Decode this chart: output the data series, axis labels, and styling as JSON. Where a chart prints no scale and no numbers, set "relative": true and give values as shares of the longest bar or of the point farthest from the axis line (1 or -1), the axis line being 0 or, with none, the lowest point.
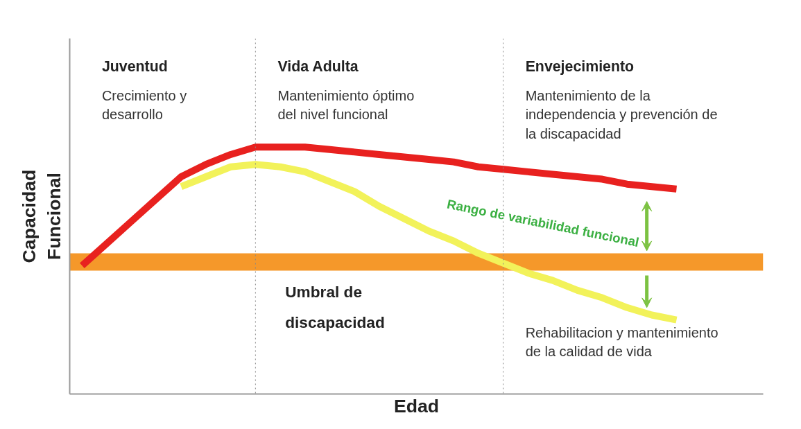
{
  "chart_data": {
    "type": "line",
    "relative": true,
    "xlabel": "Edad",
    "ylabel": "Capacidad\nFuncional",
    "categories": [
      null,
      null,
      null,
      null,
      null,
      null,
      null,
      null,
      null,
      null,
      null,
      null,
      null,
      null,
      null,
      null,
      null,
      null,
      null,
      null,
      null,
      null,
      null,
      null,
      null,
      null,
      null,
      null
    ],
    "series": [
      {
        "color": "#e8211f",
        "values": [
          0.52,
          0.61,
          0.7,
          0.79,
          0.88,
          0.93,
          0.97,
          1.0,
          1.0,
          1.0,
          0.99,
          0.98,
          0.97,
          0.96,
          0.95,
          0.94,
          0.92,
          0.91,
          0.9,
          0.89,
          0.88,
          0.87,
          0.85,
          0.84,
          0.83,
          null,
          null,
          null
        ]
      },
      {
        "color": "#f2f25a",
        "values": [
          null,
          null,
          null,
          null,
          0.84,
          0.88,
          0.92,
          0.93,
          0.92,
          0.9,
          0.86,
          0.82,
          0.76,
          0.71,
          0.66,
          0.62,
          0.57,
          0.53,
          0.49,
          0.46,
          0.42,
          0.39,
          0.35,
          0.32,
          0.3,
          null,
          null,
          null
        ]
      }
    ],
    "bands": [
      {
        "axis": "y",
        "from": 0.5,
        "to": 0.57,
        "label": "Umbral de\ndiscapacidad",
        "color": "#f5982a"
      }
    ],
    "annotations": [
      "Juventud",
      "Crecimiento y\ndesarrollo",
      "Vida Adulta",
      "Mantenimiento óptimo\ndel nivel funcional",
      "Envejecimiento",
      "Mantenimiento de la\nindependencia y prevención de\nla discapacidad",
      "Rehabilitacion y mantenimiento\nde la calidad de vida",
      "Rango de variabilidad funcional"
    ],
    "marker": "none",
    "line_style": "solid"
  }
}
